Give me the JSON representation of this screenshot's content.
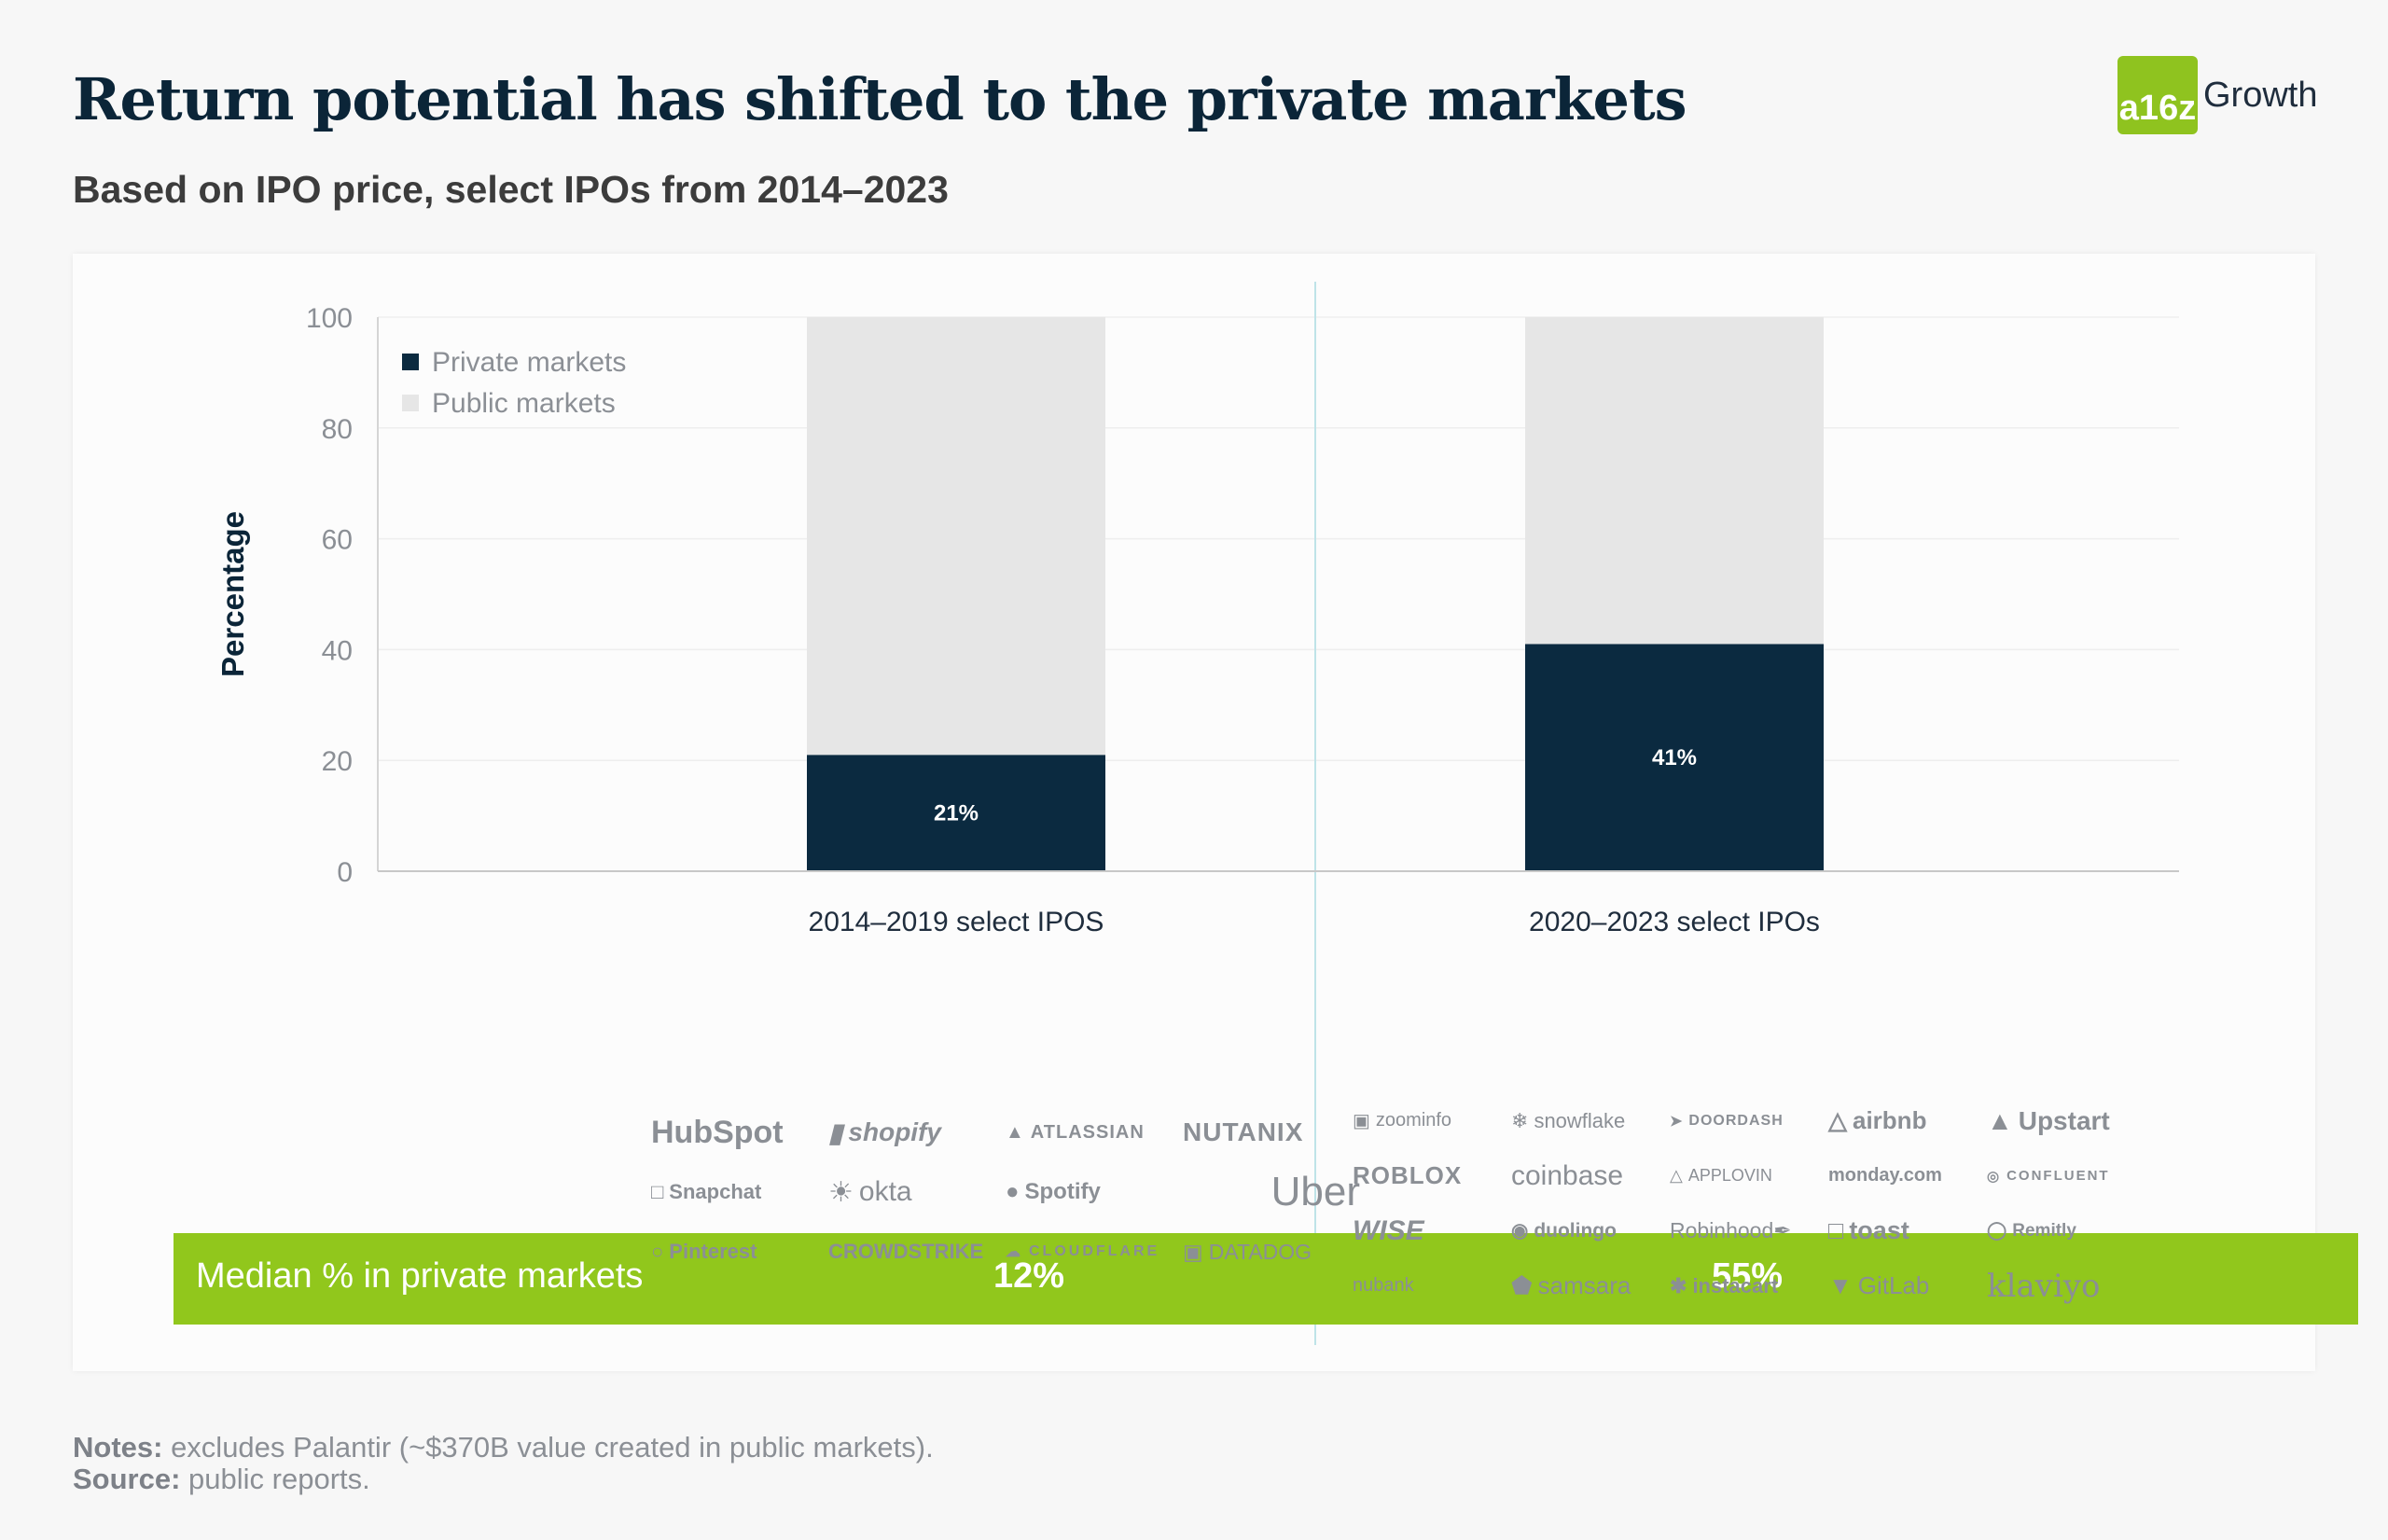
{
  "header": {
    "title": "Return potential has shifted to the private markets",
    "subtitle": "Based on IPO price, select IPOs from 2014–2023",
    "brand_mark": "a16z",
    "brand_text": "Growth"
  },
  "chart_data": {
    "type": "bar",
    "stacked": true,
    "ylabel": "Percentage",
    "ylim": [
      0,
      100
    ],
    "yticks": [
      0,
      20,
      40,
      60,
      80,
      100
    ],
    "categories": [
      "2014–2019 select IPOS",
      "2020–2023 select IPOs"
    ],
    "series": [
      {
        "name": "Private markets",
        "values": [
          21,
          41
        ],
        "labels": [
          "21%",
          "41%"
        ],
        "color": "#0b2a40"
      },
      {
        "name": "Public markets",
        "values": [
          79,
          59
        ],
        "color": "#e6e6e6"
      }
    ],
    "legend_position": "top-left",
    "grid": true
  },
  "median": {
    "label": "Median % in private markets",
    "values": [
      "12%",
      "55%"
    ],
    "color": "#91c71c"
  },
  "logos_left": [
    "HubSpot",
    "shopify",
    "ATLASSIAN",
    "NUTANIX",
    "Snapchat",
    "okta",
    "Spotify",
    "Uber",
    "Pinterest",
    "CROWDSTRIKE",
    "CLOUDFLARE",
    "DATADOG"
  ],
  "logos_right": [
    "zoominfo",
    "snowflake",
    "DOORDASH",
    "airbnb",
    "Upstart",
    "ROBLOX",
    "coinbase",
    "APPLOVIN",
    "monday.com",
    "CONFLUENT",
    "WISE",
    "duolingo",
    "Robinhood",
    "toast",
    "Remitly",
    "nubank",
    "samsara",
    "instacart",
    "GitLab",
    "klaviyo"
  ],
  "notes": {
    "notes_label": "Notes:",
    "notes_text": " excludes Palantir (~$370B value created in public markets).",
    "source_label": "Source:",
    "source_text": " public reports."
  }
}
